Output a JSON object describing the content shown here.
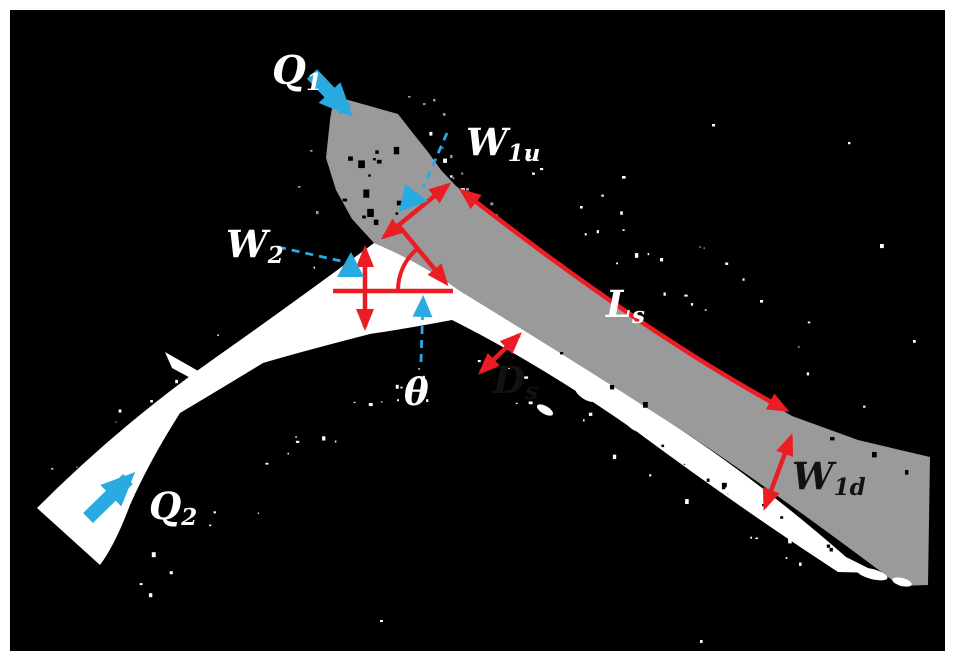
{
  "figure": {
    "colors": {
      "background": "#000000",
      "frame": "#ffffff",
      "main_channel_gray": "#9a9a9a",
      "tributary_white": "#ffffff",
      "annotation_red": "#ec1c24",
      "annotation_blue": "#29abe2",
      "dark_label": "#121212",
      "light_label": "#ffffff"
    },
    "labels": {
      "q1": {
        "main": "Q",
        "sub": "1"
      },
      "q2": {
        "main": "Q",
        "sub": "2"
      },
      "w1u": {
        "main": "W",
        "sub": "1u"
      },
      "w2": {
        "main": "W",
        "sub": "2"
      },
      "w1d": {
        "main": "W",
        "sub": "1d"
      },
      "ls": {
        "main": "L",
        "sub": "s"
      },
      "ds": {
        "main": "D",
        "sub": "s"
      },
      "theta": {
        "main": "θ",
        "sub": ""
      }
    }
  }
}
